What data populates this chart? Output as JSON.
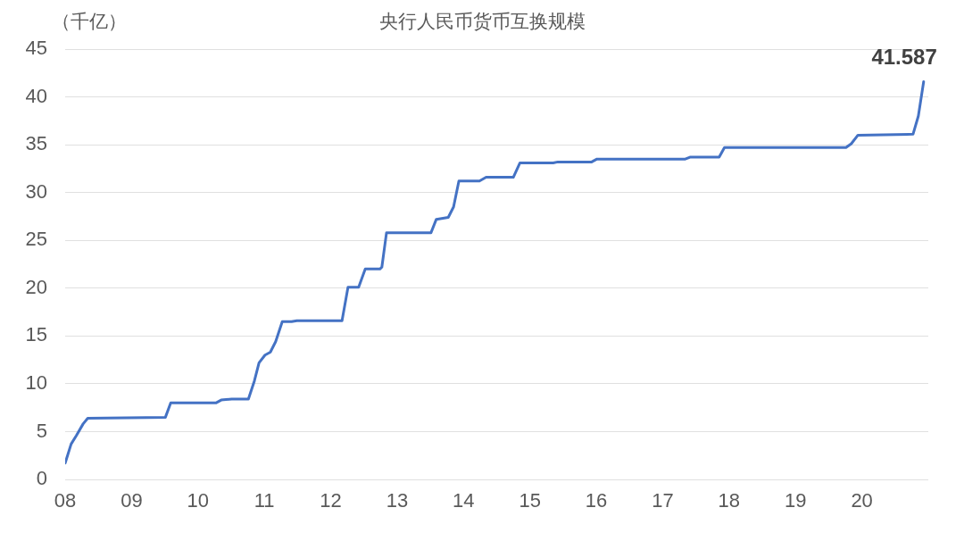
{
  "chart_data": {
    "type": "line",
    "title": "央行人民币货币互换规模",
    "ylabel": "（千亿）",
    "x": [
      2008.0,
      2008.09,
      2008.17,
      2008.27,
      2008.34,
      2009.51,
      2009.59,
      2010.27,
      2010.35,
      2010.51,
      2010.76,
      2010.85,
      2010.92,
      2011.01,
      2011.09,
      2011.17,
      2011.27,
      2011.41,
      2011.49,
      2012.17,
      2012.26,
      2012.42,
      2012.52,
      2012.74,
      2012.77,
      2012.84,
      2013.51,
      2013.59,
      2013.77,
      2013.85,
      2013.93,
      2014.24,
      2014.34,
      2014.75,
      2014.85,
      2015.35,
      2015.42,
      2015.93,
      2016.01,
      2017.34,
      2017.41,
      2017.85,
      2017.93,
      2019.76,
      2019.84,
      2019.94,
      2020.77,
      2020.85,
      2020.93
    ],
    "series": [
      {
        "color": "#4472c4",
        "values": [
          1.7,
          3.7,
          4.6,
          5.8,
          6.4,
          6.5,
          8.0,
          8.0,
          8.3,
          8.4,
          8.4,
          10.3,
          12.2,
          13.0,
          13.3,
          14.4,
          16.5,
          16.5,
          16.6,
          16.6,
          20.1,
          20.1,
          22.0,
          22.0,
          22.2,
          25.8,
          25.8,
          27.2,
          27.4,
          28.5,
          31.2,
          31.2,
          31.6,
          31.6,
          33.1,
          33.1,
          33.2,
          33.2,
          33.5,
          33.5,
          33.7,
          33.7,
          34.7,
          34.7,
          35.1,
          36.0,
          36.1,
          38.0,
          41.587
        ],
        "value_labels": [
          null,
          null,
          null,
          null,
          null,
          null,
          null,
          null,
          null,
          null,
          null,
          null,
          null,
          null,
          null,
          null,
          null,
          null,
          null,
          null,
          null,
          null,
          null,
          null,
          null,
          null,
          null,
          null,
          null,
          null,
          null,
          null,
          null,
          null,
          null,
          null,
          null,
          null,
          null,
          null,
          null,
          null,
          null,
          null,
          null,
          null,
          null,
          null,
          "41.587"
        ]
      }
    ],
    "xlim": [
      2008,
      2021
    ],
    "xticks": [
      {
        "value": 2008,
        "label": "08"
      },
      {
        "value": 2009,
        "label": "09"
      },
      {
        "value": 2010,
        "label": "10"
      },
      {
        "value": 2011,
        "label": "11"
      },
      {
        "value": 2012,
        "label": "12"
      },
      {
        "value": 2013,
        "label": "13"
      },
      {
        "value": 2014,
        "label": "14"
      },
      {
        "value": 2015,
        "label": "15"
      },
      {
        "value": 2016,
        "label": "16"
      },
      {
        "value": 2017,
        "label": "17"
      },
      {
        "value": 2018,
        "label": "18"
      },
      {
        "value": 2019,
        "label": "19"
      },
      {
        "value": 2020,
        "label": "20"
      }
    ],
    "ylim": [
      0,
      45
    ],
    "yticks": [
      0,
      5,
      10,
      15,
      20,
      25,
      30,
      35,
      40,
      45
    ],
    "grid": "y",
    "legend": false,
    "marker": "none",
    "line_style": "solid"
  }
}
